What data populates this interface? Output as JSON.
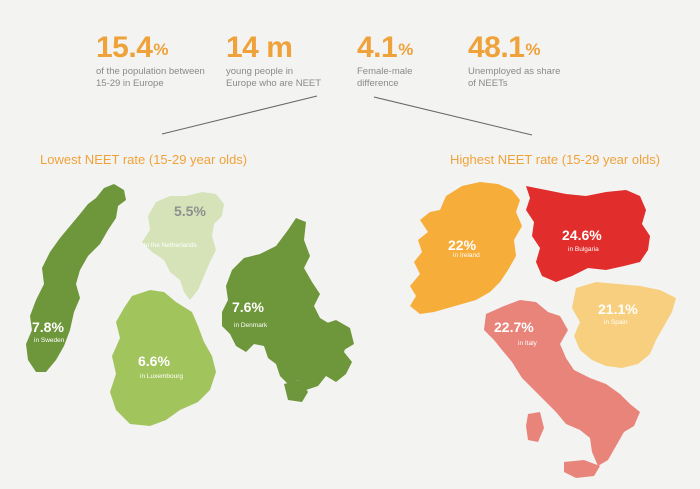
{
  "stats": [
    {
      "value": "15.4",
      "suffix": "%",
      "desc": [
        "of the population between",
        "15-29 in Europe"
      ]
    },
    {
      "value": "14 m",
      "suffix": "",
      "desc": [
        "young people in",
        "Europe who are NEET"
      ]
    },
    {
      "value": "4.1",
      "suffix": "%",
      "desc": [
        "Female-male",
        "difference"
      ]
    },
    {
      "value": "48.1",
      "suffix": "%",
      "desc": [
        "Unemployed as share",
        "of NEETs"
      ]
    }
  ],
  "lowest": {
    "title": "Lowest NEET rate (15-29  year olds)",
    "countries": [
      {
        "value": "7.8%",
        "label": "in Sweden",
        "color": "#6e963a"
      },
      {
        "value": "5.5%",
        "label": "in the Netherlands",
        "color": "#d6e3b9"
      },
      {
        "value": "6.6%",
        "label": "in Luxembourg",
        "color": "#a2c45c"
      },
      {
        "value": "7.6%",
        "label": "in Denmark",
        "color": "#6e963a"
      }
    ]
  },
  "highest": {
    "title": "Highest NEET rate (15-29  year olds)",
    "countries": [
      {
        "value": "22%",
        "label": "in Ireland",
        "color": "#f6ad3a"
      },
      {
        "value": "24.6%",
        "label": "in Bulgaria",
        "color": "#e12d2b"
      },
      {
        "value": "21.1%",
        "label": "in Spain",
        "color": "#f8cf7e"
      },
      {
        "value": "22.7%",
        "label": "in Italy",
        "color": "#e9847b"
      }
    ]
  },
  "colors": {
    "accent": "#f0a23a",
    "text_gray": "#8a8a8a",
    "line": "#666666",
    "bg": "#f3f3f2"
  }
}
